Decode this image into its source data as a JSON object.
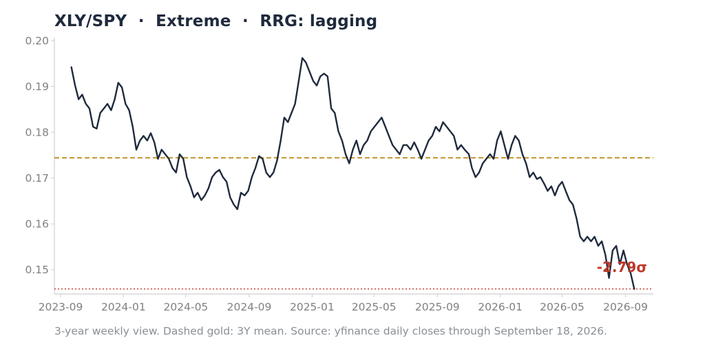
{
  "chart_data": {
    "type": "line",
    "title": "XLY/SPY  ·  Extreme  ·  RRG: lagging",
    "caption": "3-year weekly view. Dashed gold: 3Y mean. Source: yfinance daily closes through September 18, 2026.",
    "xlabel": "",
    "ylabel": "",
    "x_ticks": [
      "2023-09",
      "2024-01",
      "2024-05",
      "2024-09",
      "2025-01",
      "2025-05",
      "2025-09",
      "2026-01",
      "2026-05",
      "2026-09"
    ],
    "y_ticks": [
      0.15,
      0.16,
      0.17,
      0.18,
      0.19,
      0.2
    ],
    "ylim": [
      0.1447,
      0.2006
    ],
    "xlim": [
      "2023-08-20",
      "2026-10-25"
    ],
    "grid": false,
    "series": [
      {
        "color": "#1f2a3d",
        "points": [
          [
            "2023-09-22",
            0.1942
          ],
          [
            "2023-09-29",
            0.1903
          ],
          [
            "2023-10-06",
            0.1872
          ],
          [
            "2023-10-13",
            0.1882
          ],
          [
            "2023-10-20",
            0.1862
          ],
          [
            "2023-10-27",
            0.1852
          ],
          [
            "2023-11-03",
            0.1812
          ],
          [
            "2023-11-10",
            0.1808
          ],
          [
            "2023-11-17",
            0.1842
          ],
          [
            "2023-11-24",
            0.1852
          ],
          [
            "2023-12-01",
            0.1862
          ],
          [
            "2023-12-08",
            0.1848
          ],
          [
            "2023-12-15",
            0.1872
          ],
          [
            "2023-12-22",
            0.1908
          ],
          [
            "2023-12-29",
            0.1898
          ],
          [
            "2024-01-05",
            0.1862
          ],
          [
            "2024-01-12",
            0.1848
          ],
          [
            "2024-01-19",
            0.1812
          ],
          [
            "2024-01-26",
            0.1762
          ],
          [
            "2024-02-02",
            0.1782
          ],
          [
            "2024-02-09",
            0.1792
          ],
          [
            "2024-02-16",
            0.1782
          ],
          [
            "2024-02-23",
            0.1798
          ],
          [
            "2024-03-01",
            0.1778
          ],
          [
            "2024-03-08",
            0.1742
          ],
          [
            "2024-03-15",
            0.1762
          ],
          [
            "2024-03-22",
            0.1752
          ],
          [
            "2024-03-29",
            0.1742
          ],
          [
            "2024-04-05",
            0.1722
          ],
          [
            "2024-04-12",
            0.1712
          ],
          [
            "2024-04-19",
            0.1752
          ],
          [
            "2024-04-26",
            0.1742
          ],
          [
            "2024-05-03",
            0.1702
          ],
          [
            "2024-05-10",
            0.1682
          ],
          [
            "2024-05-17",
            0.1658
          ],
          [
            "2024-05-24",
            0.1668
          ],
          [
            "2024-05-31",
            0.1652
          ],
          [
            "2024-06-07",
            0.1662
          ],
          [
            "2024-06-14",
            0.1678
          ],
          [
            "2024-06-21",
            0.1702
          ],
          [
            "2024-06-28",
            0.1712
          ],
          [
            "2024-07-05",
            0.1718
          ],
          [
            "2024-07-12",
            0.1702
          ],
          [
            "2024-07-19",
            0.1692
          ],
          [
            "2024-07-26",
            0.1658
          ],
          [
            "2024-08-02",
            0.1642
          ],
          [
            "2024-08-09",
            0.1632
          ],
          [
            "2024-08-16",
            0.1668
          ],
          [
            "2024-08-23",
            0.1662
          ],
          [
            "2024-08-30",
            0.1672
          ],
          [
            "2024-09-06",
            0.1702
          ],
          [
            "2024-09-13",
            0.1722
          ],
          [
            "2024-09-20",
            0.1748
          ],
          [
            "2024-09-27",
            0.1742
          ],
          [
            "2024-10-04",
            0.1712
          ],
          [
            "2024-10-11",
            0.1702
          ],
          [
            "2024-10-18",
            0.1712
          ],
          [
            "2024-10-25",
            0.1738
          ],
          [
            "2024-11-01",
            0.1782
          ],
          [
            "2024-11-08",
            0.1832
          ],
          [
            "2024-11-15",
            0.1822
          ],
          [
            "2024-11-22",
            0.1842
          ],
          [
            "2024-11-29",
            0.1862
          ],
          [
            "2024-12-06",
            0.1912
          ],
          [
            "2024-12-13",
            0.1962
          ],
          [
            "2024-12-20",
            0.1952
          ],
          [
            "2024-12-27",
            0.1932
          ],
          [
            "2025-01-03",
            0.1912
          ],
          [
            "2025-01-10",
            0.1902
          ],
          [
            "2025-01-17",
            0.1922
          ],
          [
            "2025-01-24",
            0.1928
          ],
          [
            "2025-01-31",
            0.1922
          ],
          [
            "2025-02-07",
            0.1852
          ],
          [
            "2025-02-14",
            0.1842
          ],
          [
            "2025-02-21",
            0.1802
          ],
          [
            "2025-02-28",
            0.1782
          ],
          [
            "2025-03-07",
            0.1752
          ],
          [
            "2025-03-14",
            0.1732
          ],
          [
            "2025-03-21",
            0.1762
          ],
          [
            "2025-03-28",
            0.1782
          ],
          [
            "2025-04-04",
            0.1752
          ],
          [
            "2025-04-11",
            0.1772
          ],
          [
            "2025-04-18",
            0.1782
          ],
          [
            "2025-04-25",
            0.1802
          ],
          [
            "2025-05-02",
            0.1812
          ],
          [
            "2025-05-09",
            0.1822
          ],
          [
            "2025-05-16",
            0.1832
          ],
          [
            "2025-05-23",
            0.1812
          ],
          [
            "2025-05-30",
            0.1792
          ],
          [
            "2025-06-06",
            0.1772
          ],
          [
            "2025-06-13",
            0.1762
          ],
          [
            "2025-06-20",
            0.1752
          ],
          [
            "2025-06-27",
            0.1772
          ],
          [
            "2025-07-04",
            0.1772
          ],
          [
            "2025-07-11",
            0.1762
          ],
          [
            "2025-07-18",
            0.1778
          ],
          [
            "2025-07-25",
            0.1762
          ],
          [
            "2025-08-01",
            0.1742
          ],
          [
            "2025-08-08",
            0.1762
          ],
          [
            "2025-08-15",
            0.1782
          ],
          [
            "2025-08-22",
            0.1792
          ],
          [
            "2025-08-29",
            0.1812
          ],
          [
            "2025-09-05",
            0.1802
          ],
          [
            "2025-09-12",
            0.1822
          ],
          [
            "2025-09-19",
            0.1812
          ],
          [
            "2025-09-26",
            0.1802
          ],
          [
            "2025-10-03",
            0.1792
          ],
          [
            "2025-10-10",
            0.1762
          ],
          [
            "2025-10-17",
            0.1772
          ],
          [
            "2025-10-24",
            0.1762
          ],
          [
            "2025-11-01",
            0.1752
          ],
          [
            "2025-11-07",
            0.1722
          ],
          [
            "2025-11-14",
            0.1702
          ],
          [
            "2025-11-21",
            0.1712
          ],
          [
            "2025-11-28",
            0.1732
          ],
          [
            "2025-12-05",
            0.1742
          ],
          [
            "2025-12-12",
            0.1752
          ],
          [
            "2025-12-19",
            0.1742
          ],
          [
            "2025-12-26",
            0.1782
          ],
          [
            "2026-01-02",
            0.1802
          ],
          [
            "2026-01-09",
            0.1772
          ],
          [
            "2026-01-16",
            0.1742
          ],
          [
            "2026-01-23",
            0.1772
          ],
          [
            "2026-01-30",
            0.1792
          ],
          [
            "2026-02-06",
            0.1782
          ],
          [
            "2026-02-13",
            0.1752
          ],
          [
            "2026-02-20",
            0.1732
          ],
          [
            "2026-02-27",
            0.1702
          ],
          [
            "2026-03-06",
            0.1712
          ],
          [
            "2026-03-13",
            0.1698
          ],
          [
            "2026-03-20",
            0.1702
          ],
          [
            "2026-03-27",
            0.1688
          ],
          [
            "2026-04-03",
            0.1672
          ],
          [
            "2026-04-10",
            0.1682
          ],
          [
            "2026-04-17",
            0.1662
          ],
          [
            "2026-04-24",
            0.1682
          ],
          [
            "2026-05-01",
            0.1692
          ],
          [
            "2026-05-08",
            0.1672
          ],
          [
            "2026-05-15",
            0.1652
          ],
          [
            "2026-05-22",
            0.1642
          ],
          [
            "2026-05-29",
            0.1612
          ],
          [
            "2026-06-05",
            0.1572
          ],
          [
            "2026-06-12",
            0.1562
          ],
          [
            "2026-06-19",
            0.1572
          ],
          [
            "2026-06-26",
            0.1562
          ],
          [
            "2026-07-03",
            0.1572
          ],
          [
            "2026-07-10",
            0.1552
          ],
          [
            "2026-07-17",
            0.1562
          ],
          [
            "2026-07-24",
            0.1532
          ],
          [
            "2026-07-31",
            0.1482
          ],
          [
            "2026-08-07",
            0.1542
          ],
          [
            "2026-08-14",
            0.1552
          ],
          [
            "2026-08-21",
            0.1512
          ],
          [
            "2026-08-28",
            0.1542
          ],
          [
            "2026-09-04",
            0.1512
          ],
          [
            "2026-09-11",
            0.1492
          ],
          [
            "2026-09-18",
            0.1458
          ]
        ]
      }
    ],
    "mean_line": {
      "value": 0.17442,
      "color": "#b8860b",
      "style": "dashed"
    },
    "current_line": {
      "value": 0.1458,
      "color": "#c0392b",
      "style": "dotted"
    },
    "annotation": {
      "text": "-2.79σ",
      "color": "#c0392b",
      "at_x": "2026-08-25",
      "at_y": 0.1495
    }
  }
}
